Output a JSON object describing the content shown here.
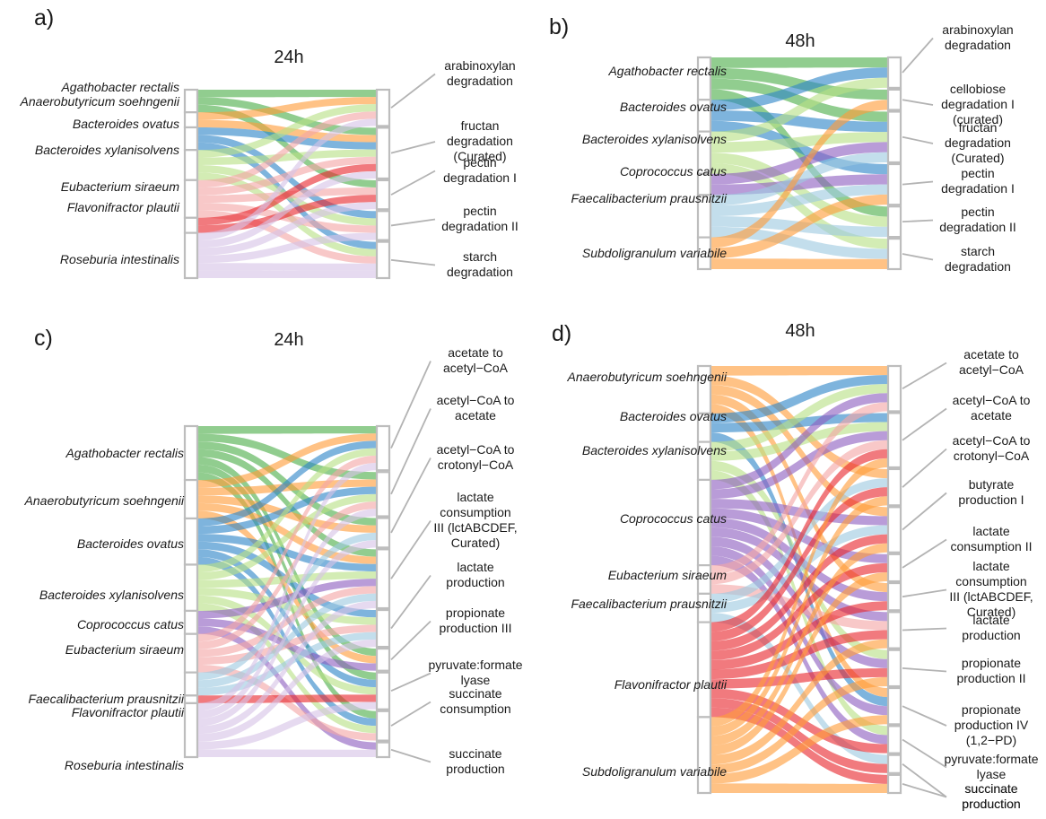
{
  "palette": {
    "green": "#4daf4a",
    "orange": "#ff9d3a",
    "blue": "#2f86c8",
    "purple": "#8e5fc0",
    "red": "#e8292f",
    "lightblue": "#9ecae1",
    "lightgreen": "#b8e186",
    "lightpink": "#f4a6a6",
    "lightpurple": "#d6c3e6"
  },
  "panels": [
    {
      "label": "a)",
      "title": "24h",
      "organisms": [
        {
          "name": "Agathobacter rectalis",
          "color": "green",
          "links": [
            0,
            1,
            2
          ]
        },
        {
          "name": "Anaerobutyricum soehngenii",
          "color": "orange",
          "links": [
            0,
            1
          ]
        },
        {
          "name": "Bacteroides ovatus",
          "color": "blue",
          "links": [
            1,
            3,
            4
          ]
        },
        {
          "name": "Bacteroides xylanisolvens",
          "color": "lightgreen",
          "links": [
            0,
            1,
            3,
            4
          ]
        },
        {
          "name": "Eubacterium siraeum",
          "color": "lightpink",
          "links": [
            0,
            1,
            2,
            3,
            4
          ]
        },
        {
          "name": "Flavonifractor plautii",
          "color": "red",
          "links": [
            1,
            2
          ]
        },
        {
          "name": "Roseburia intestinalis",
          "color": "lightpurple",
          "links": [
            0,
            1,
            2,
            3,
            4,
            4
          ]
        }
      ],
      "pathways": [
        {
          "label": "arabinoxylan\ndegradation"
        },
        {
          "label": "fructan\ndegradation\n(Curated)"
        },
        {
          "label": "pectin\ndegradation I"
        },
        {
          "label": "pectin\ndegradation II"
        },
        {
          "label": "starch\ndegradation"
        }
      ]
    },
    {
      "label": "b)",
      "title": "48h",
      "organisms": [
        {
          "name": "Agathobacter rectalis",
          "color": "green",
          "links": [
            0,
            1,
            2,
            4
          ]
        },
        {
          "name": "Bacteroides ovatus",
          "color": "blue",
          "links": [
            0,
            2,
            3
          ]
        },
        {
          "name": "Bacteroides xylanisolvens",
          "color": "lightgreen",
          "links": [
            0,
            2,
            4,
            5
          ]
        },
        {
          "name": "Coprococcus catus",
          "color": "purple",
          "links": [
            2,
            3
          ]
        },
        {
          "name": "Faecalibacterium prausnitzii",
          "color": "lightblue",
          "links": [
            2,
            3,
            4,
            5
          ]
        },
        {
          "name": "Subdoligranulum variabile",
          "color": "orange",
          "links": [
            1,
            3,
            5
          ]
        }
      ],
      "pathways": [
        {
          "label": "arabinoxylan\ndegradation"
        },
        {
          "label": "cellobiose\ndegradation I\n(curated)"
        },
        {
          "label": "fructan\ndegradation\n(Curated)"
        },
        {
          "label": "pectin\ndegradation I"
        },
        {
          "label": "pectin\ndegradation II"
        },
        {
          "label": "starch\ndegradation"
        }
      ]
    },
    {
      "label": "c)",
      "title": "24h",
      "organisms": [
        {
          "name": "Agathobacter rectalis",
          "color": "green",
          "links": [
            0,
            1,
            2,
            3,
            5,
            6,
            7
          ]
        },
        {
          "name": "Anaerobutyricum soehngenii",
          "color": "orange",
          "links": [
            0,
            1,
            2,
            3,
            5
          ]
        },
        {
          "name": "Bacteroides ovatus",
          "color": "blue",
          "links": [
            0,
            1,
            3,
            4,
            6,
            7
          ]
        },
        {
          "name": "Bacteroides xylanisolvens",
          "color": "lightgreen",
          "links": [
            0,
            1,
            3,
            4,
            6,
            7
          ]
        },
        {
          "name": "Coprococcus catus",
          "color": "purple",
          "links": [
            3,
            5,
            8
          ]
        },
        {
          "name": "Eubacterium siraeum",
          "color": "lightpink",
          "links": [
            0,
            1,
            3,
            4,
            7
          ]
        },
        {
          "name": "Faecalibacterium prausnitzii",
          "color": "lightblue",
          "links": [
            2,
            3,
            4
          ]
        },
        {
          "name": "Flavonifractor plautii",
          "color": "red",
          "links": [
            6
          ]
        },
        {
          "name": "Roseburia intestinalis",
          "color": "lightpurple",
          "links": [
            0,
            1,
            2,
            3,
            4,
            6,
            8
          ]
        }
      ],
      "pathways": [
        {
          "label": "acetate to\nacetyl−CoA"
        },
        {
          "label": "acetyl−CoA to\nacetate"
        },
        {
          "label": "acetyl−CoA to\ncrotonyl−CoA"
        },
        {
          "label": "lactate\nconsumption\nIII (lctABCDEF,\nCurated)"
        },
        {
          "label": "lactate\nproduction"
        },
        {
          "label": "propionate\nproduction III"
        },
        {
          "label": "pyruvate:formate\nlyase"
        },
        {
          "label": "succinate\nconsumption"
        },
        {
          "label": "succinate\nproduction"
        }
      ]
    },
    {
      "label": "d)",
      "title": "48h",
      "organisms": [
        {
          "name": "Anaerobutyricum soehngenii",
          "color": "orange",
          "links": [
            0,
            2,
            3,
            5,
            8
          ]
        },
        {
          "name": "Bacteroides ovatus",
          "color": "blue",
          "links": [
            0,
            1,
            8
          ]
        },
        {
          "name": "Bacteroides xylanisolvens",
          "color": "lightgreen",
          "links": [
            0,
            1,
            7,
            9
          ]
        },
        {
          "name": "Coprococcus catus",
          "color": "purple",
          "links": [
            0,
            1,
            3,
            4,
            5,
            6,
            7,
            8,
            9
          ]
        },
        {
          "name": "Eubacterium siraeum",
          "color": "lightpink",
          "links": [
            0,
            1,
            6
          ]
        },
        {
          "name": "Faecalibacterium prausnitzii",
          "color": "lightblue",
          "links": [
            2,
            3,
            10
          ]
        },
        {
          "name": "Flavonifractor plautii",
          "color": "red",
          "links": [
            1,
            2,
            3,
            4,
            5,
            6,
            7,
            9,
            10,
            11
          ]
        },
        {
          "name": "Subdoligranulum variabile",
          "color": "orange",
          "links": [
            1,
            2,
            3,
            4,
            6,
            7,
            8,
            11
          ]
        }
      ],
      "pathways": [
        {
          "label": "acetate to\nacetyl−CoA"
        },
        {
          "label": "acetyl−CoA to\nacetate"
        },
        {
          "label": "acetyl−CoA to\ncrotonyl−CoA"
        },
        {
          "label": "butyrate\nproduction I"
        },
        {
          "label": "lactate\nconsumption II"
        },
        {
          "label": "lactate\nconsumption\nIII (lctABCDEF,\nCurated)"
        },
        {
          "label": "lactate\nproduction"
        },
        {
          "label": "propionate\nproduction II"
        },
        {
          "label": "propionate\nproduction IV\n(1,2−PD)"
        },
        {
          "label": "pyruvate:formate\nlyase"
        },
        {
          "label": "succinate\nproduction"
        },
        {
          "label": "succinate\nproduction"
        }
      ]
    }
  ]
}
